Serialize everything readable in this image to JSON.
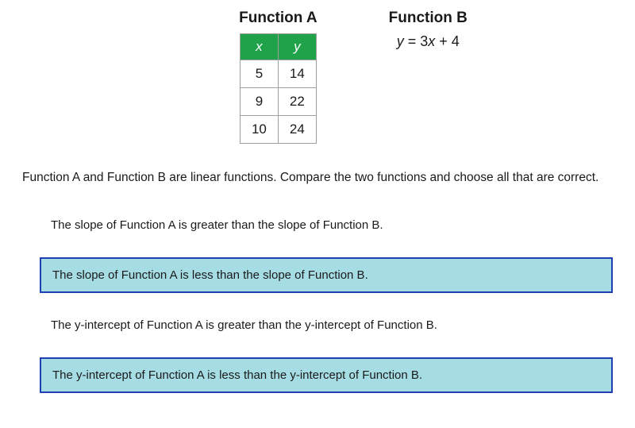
{
  "functionA": {
    "title": "Function A",
    "table": {
      "header_bg": "#1fa24a",
      "header_fg": "#ffffff",
      "border_color": "#9e9e9e",
      "columns": [
        "x",
        "y"
      ],
      "rows": [
        [
          "5",
          "14"
        ],
        [
          "9",
          "22"
        ],
        [
          "10",
          "24"
        ]
      ]
    }
  },
  "functionB": {
    "title": "Function B",
    "equation_html": "y = 3x + 4"
  },
  "prompt": "Function A and Function B are linear functions. Compare the two functions and choose all that are correct.",
  "selected_style": {
    "bg": "#a6dde4",
    "border": "#1f3fb3"
  },
  "options": [
    {
      "text": "The slope of Function A is greater than the slope of Function B.",
      "selected": false
    },
    {
      "text": "The slope of Function A is less than the slope of Function B.",
      "selected": true
    },
    {
      "text": "The y-intercept of Function A is greater than the y-intercept of Function B.",
      "selected": false
    },
    {
      "text": "The y-intercept of Function A is less than the y-intercept of Function B.",
      "selected": true
    }
  ]
}
